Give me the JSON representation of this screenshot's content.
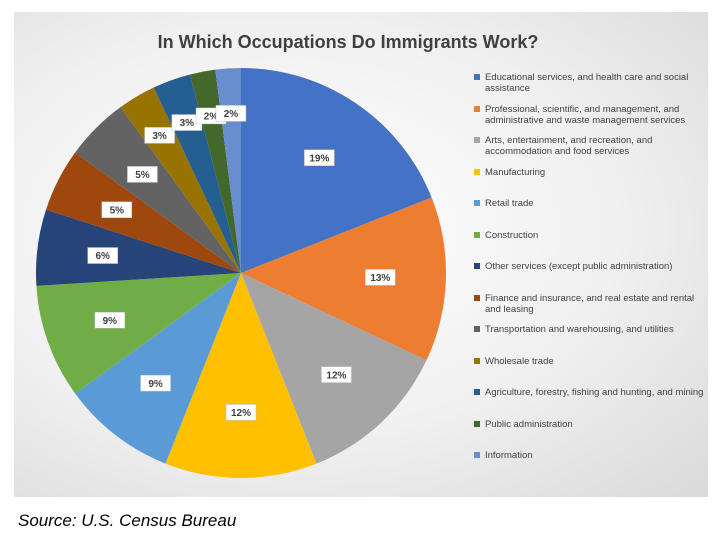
{
  "chart_data": {
    "type": "pie",
    "title": "In Which Occupations Do Immigrants Work?",
    "categories": [
      "Educational services, and health care and social assistance",
      "Professional, scientific, and management, and administrative and waste management services",
      "Arts, entertainment, and recreation, and accommodation and food services",
      "Manufacturing",
      "Retail trade",
      "Construction",
      "Other services (except public administration)",
      "Finance and insurance, and real estate and rental and leasing",
      "Transportation and warehousing, and utilities",
      "Wholesale trade",
      "Agriculture, forestry, fishing and hunting, and mining",
      "Public administration",
      "Information"
    ],
    "values": [
      19,
      13,
      12,
      12,
      9,
      9,
      6,
      5,
      5,
      3,
      3,
      2,
      2
    ],
    "value_labels": [
      "19%",
      "13%",
      "12%",
      "12%",
      "9%",
      "9%",
      "6%",
      "5%",
      "5%",
      "3%",
      "3%",
      "2%",
      "2%"
    ],
    "colors": [
      "#4472c4",
      "#ed7d31",
      "#a5a5a5",
      "#ffc000",
      "#5b9bd5",
      "#70ad47",
      "#264478",
      "#9e480e",
      "#636363",
      "#997300",
      "#255e91",
      "#43682b",
      "#698ed0"
    ],
    "legend": "right"
  },
  "source": "Source: U.S. Census Bureau"
}
